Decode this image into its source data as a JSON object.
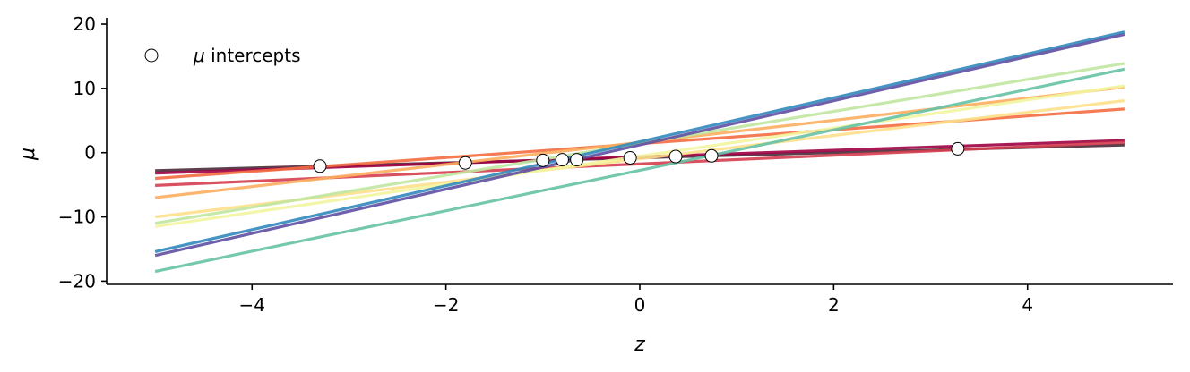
{
  "chart_data": {
    "type": "line",
    "xlabel": "z",
    "ylabel": "μ",
    "xlim": [
      -5.5,
      5.5
    ],
    "ylim": [
      -20.5,
      20.7
    ],
    "xticks": [
      -4,
      -2,
      0,
      2,
      4
    ],
    "yticks": [
      -20,
      -10,
      0,
      10,
      20
    ],
    "xtick_labels": [
      "−4",
      "−2",
      "0",
      "2",
      "4"
    ],
    "ytick_labels": [
      "−20",
      "−10",
      "0",
      "10",
      "20"
    ],
    "grid": false,
    "legend": {
      "placement": "top-left",
      "entries": [
        {
          "label_prefix": "μ",
          "label_text": " intercepts",
          "marker": "open-circle"
        }
      ]
    },
    "lines": [
      {
        "x": [
          -5,
          5
        ],
        "y": [
          -2.8,
          1.2
        ],
        "color": "#4a2b3a"
      },
      {
        "x": [
          -5,
          5
        ],
        "y": [
          -3.2,
          1.9
        ],
        "color": "#9e0142"
      },
      {
        "x": [
          -5,
          5
        ],
        "y": [
          -5.1,
          1.6
        ],
        "color": "#d53e4f"
      },
      {
        "x": [
          -5,
          5
        ],
        "y": [
          -4.0,
          6.8
        ],
        "color": "#f46d43"
      },
      {
        "x": [
          -5,
          5
        ],
        "y": [
          -7.0,
          10.2
        ],
        "color": "#fdae61"
      },
      {
        "x": [
          -5,
          5
        ],
        "y": [
          -10.0,
          8.1
        ],
        "color": "#fee08b"
      },
      {
        "x": [
          -5,
          5
        ],
        "y": [
          -11.5,
          10.4
        ],
        "color": "#f2f5a0"
      },
      {
        "x": [
          -5,
          5
        ],
        "y": [
          -11.0,
          13.9
        ],
        "color": "#c0e5a0"
      },
      {
        "x": [
          -5,
          5
        ],
        "y": [
          -18.5,
          13.0
        ],
        "color": "#66c2a5"
      },
      {
        "x": [
          -5,
          5
        ],
        "y": [
          -15.4,
          18.8
        ],
        "color": "#3288bd"
      },
      {
        "x": [
          -5,
          5
        ],
        "y": [
          -16.0,
          18.4
        ],
        "color": "#5e4fa2"
      }
    ],
    "intercepts": {
      "name": "μ intercepts",
      "x": [
        -3.3,
        -1.8,
        -1.0,
        -0.8,
        -0.65,
        -0.1,
        0.37,
        0.74,
        3.28
      ],
      "y": [
        -2.1,
        -1.6,
        -1.2,
        -1.1,
        -1.1,
        -0.8,
        -0.6,
        -0.5,
        0.6
      ]
    }
  }
}
